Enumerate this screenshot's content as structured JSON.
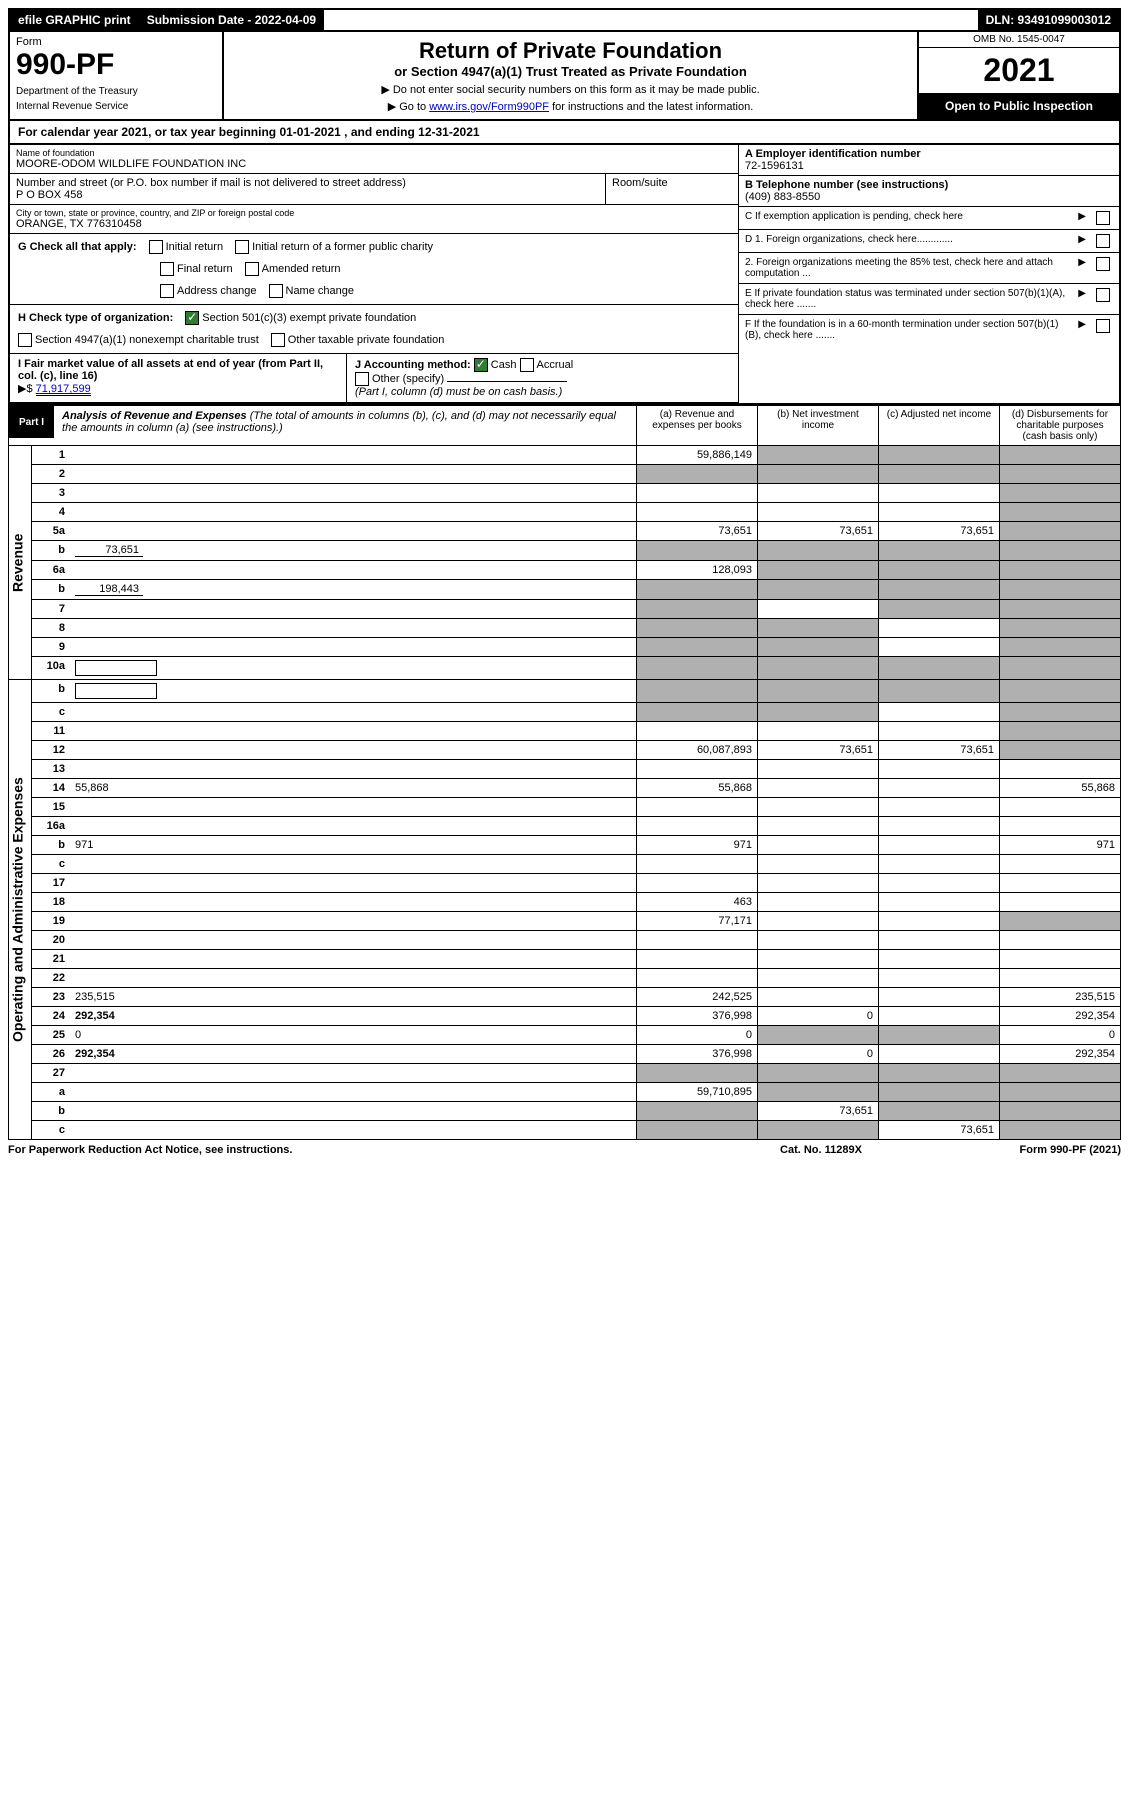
{
  "header_bar": {
    "efile": "efile GRAPHIC print",
    "sub_label": "Submission Date - 2022-04-09",
    "dln": "DLN: 93491099003012"
  },
  "form_block": {
    "form_word": "Form",
    "form_no": "990-PF",
    "dept": "Department of the Treasury",
    "irs": "Internal Revenue Service",
    "title": "Return of Private Foundation",
    "subtitle": "or Section 4947(a)(1) Trust Treated as Private Foundation",
    "note1": "▶ Do not enter social security numbers on this form as it may be made public.",
    "note2_pre": "▶ Go to ",
    "note2_link": "www.irs.gov/Form990PF",
    "note2_post": " for instructions and the latest information.",
    "omb": "OMB No. 1545-0047",
    "year": "2021",
    "open": "Open to Public Inspection"
  },
  "cal_year": "For calendar year 2021, or tax year beginning 01-01-2021                             , and ending 12-31-2021",
  "org": {
    "name_label": "Name of foundation",
    "name": "MOORE-ODOM WILDLIFE FOUNDATION INC",
    "addr_label": "Number and street (or P.O. box number if mail is not delivered to street address)",
    "addr": "P O BOX 458",
    "room_label": "Room/suite",
    "city_label": "City or town, state or province, country, and ZIP or foreign postal code",
    "city": "ORANGE, TX  776310458"
  },
  "right_info": {
    "a_label": "A Employer identification number",
    "a_val": "72-1596131",
    "b_label": "B Telephone number (see instructions)",
    "b_val": "(409) 883-8550",
    "c": "C If exemption application is pending, check here",
    "d1": "D 1. Foreign organizations, check here.............",
    "d2": "2. Foreign organizations meeting the 85% test, check here and attach computation ...",
    "e": "E  If private foundation status was terminated under section 507(b)(1)(A), check here .......",
    "f": "F  If the foundation is in a 60-month termination under section 507(b)(1)(B), check here ......."
  },
  "g": {
    "label": "G Check all that apply:",
    "opts": [
      "Initial return",
      "Final return",
      "Address change",
      "Initial return of a former public charity",
      "Amended return",
      "Name change"
    ]
  },
  "h": {
    "label": "H Check type of organization:",
    "o1": "Section 501(c)(3) exempt private foundation",
    "o2": "Section 4947(a)(1) nonexempt charitable trust",
    "o3": "Other taxable private foundation"
  },
  "i": {
    "label": "I Fair market value of all assets at end of year (from Part II, col. (c), line 16)",
    "arrow": "▶$",
    "val": "71,917,599"
  },
  "j": {
    "label": "J Accounting method:",
    "cash": "Cash",
    "accrual": "Accrual",
    "other": "Other (specify)",
    "note": "(Part I, column (d) must be on cash basis.)"
  },
  "part1": {
    "label": "Part I",
    "title": "Analysis of Revenue and Expenses",
    "title_note": " (The total of amounts in columns (b), (c), and (d) may not necessarily equal the amounts in column (a) (see instructions).)",
    "cols": {
      "a": "(a) Revenue and expenses per books",
      "b": "(b) Net investment income",
      "c": "(c) Adjusted net income",
      "d": "(d) Disbursements for charitable purposes (cash basis only)"
    }
  },
  "side": {
    "rev": "Revenue",
    "exp": "Operating and Administrative Expenses"
  },
  "rows": [
    {
      "n": "1",
      "d": "",
      "a": "59,886,149",
      "b": "",
      "c": "",
      "shade_bcd": true
    },
    {
      "n": "2",
      "d": "",
      "a": "",
      "b": "",
      "c": "",
      "shade_all": true
    },
    {
      "n": "3",
      "d": "",
      "a": "",
      "b": "",
      "c": "",
      "shade_d": true
    },
    {
      "n": "4",
      "d": "",
      "a": "",
      "b": "",
      "c": "",
      "shade_d": true
    },
    {
      "n": "5a",
      "d": "",
      "a": "73,651",
      "b": "73,651",
      "c": "73,651",
      "shade_d": true
    },
    {
      "n": "b",
      "d": "",
      "inline": "73,651",
      "a": "",
      "b": "",
      "c": "",
      "shade_all": true
    },
    {
      "n": "6a",
      "d": "",
      "a": "128,093",
      "b": "",
      "c": "",
      "shade_bcd": true
    },
    {
      "n": "b",
      "d": "",
      "inline": "198,443",
      "a": "",
      "b": "",
      "c": "",
      "shade_all": true
    },
    {
      "n": "7",
      "d": "",
      "a": "",
      "b": "",
      "c": "",
      "shade_a": true,
      "shade_cd": true
    },
    {
      "n": "8",
      "d": "",
      "a": "",
      "b": "",
      "c": "",
      "shade_ab": true,
      "shade_d": true
    },
    {
      "n": "9",
      "d": "",
      "a": "",
      "b": "",
      "c": "",
      "shade_ab": true,
      "shade_d": true
    },
    {
      "n": "10a",
      "d": "",
      "box": true,
      "a": "",
      "b": "",
      "c": "",
      "shade_all": true
    },
    {
      "n": "b",
      "d": "",
      "box": true,
      "a": "",
      "b": "",
      "c": "",
      "shade_all": true
    },
    {
      "n": "c",
      "d": "",
      "a": "",
      "b": "",
      "c": "",
      "shade_ab": true,
      "shade_d": true
    },
    {
      "n": "11",
      "d": "",
      "a": "",
      "b": "",
      "c": "",
      "shade_d": true
    },
    {
      "n": "12",
      "d": "",
      "bold": true,
      "a": "60,087,893",
      "b": "73,651",
      "c": "73,651",
      "shade_d": true
    },
    {
      "n": "13",
      "d": "",
      "a": "",
      "b": "",
      "c": ""
    },
    {
      "n": "14",
      "d": "55,868",
      "a": "55,868",
      "b": "",
      "c": ""
    },
    {
      "n": "15",
      "d": "",
      "a": "",
      "b": "",
      "c": ""
    },
    {
      "n": "16a",
      "d": "",
      "a": "",
      "b": "",
      "c": ""
    },
    {
      "n": "b",
      "d": "971",
      "a": "971",
      "b": "",
      "c": ""
    },
    {
      "n": "c",
      "d": "",
      "a": "",
      "b": "",
      "c": ""
    },
    {
      "n": "17",
      "d": "",
      "a": "",
      "b": "",
      "c": ""
    },
    {
      "n": "18",
      "d": "",
      "a": "463",
      "b": "",
      "c": ""
    },
    {
      "n": "19",
      "d": "",
      "a": "77,171",
      "b": "",
      "c": "",
      "shade_d": true
    },
    {
      "n": "20",
      "d": "",
      "a": "",
      "b": "",
      "c": ""
    },
    {
      "n": "21",
      "d": "",
      "a": "",
      "b": "",
      "c": ""
    },
    {
      "n": "22",
      "d": "",
      "a": "",
      "b": "",
      "c": ""
    },
    {
      "n": "23",
      "d": "235,515",
      "a": "242,525",
      "b": "",
      "c": ""
    },
    {
      "n": "24",
      "d": "292,354",
      "bold": true,
      "a": "376,998",
      "b": "0",
      "c": ""
    },
    {
      "n": "25",
      "d": "0",
      "a": "0",
      "b": "",
      "c": "",
      "shade_bc": true
    },
    {
      "n": "26",
      "d": "292,354",
      "bold": true,
      "a": "376,998",
      "b": "0",
      "c": ""
    },
    {
      "n": "27",
      "d": "",
      "a": "",
      "b": "",
      "c": "",
      "shade_all": true
    },
    {
      "n": "a",
      "d": "",
      "bold": true,
      "a": "59,710,895",
      "b": "",
      "c": "",
      "shade_bcd": true
    },
    {
      "n": "b",
      "d": "",
      "bold": true,
      "a": "",
      "b": "73,651",
      "c": "",
      "shade_a": true,
      "shade_cd": true
    },
    {
      "n": "c",
      "d": "",
      "bold": true,
      "a": "",
      "b": "",
      "c": "73,651",
      "shade_ab": true,
      "shade_d": true
    }
  ],
  "footer": {
    "l": "For Paperwork Reduction Act Notice, see instructions.",
    "m": "Cat. No. 11289X",
    "r": "Form 990-PF (2021)"
  }
}
